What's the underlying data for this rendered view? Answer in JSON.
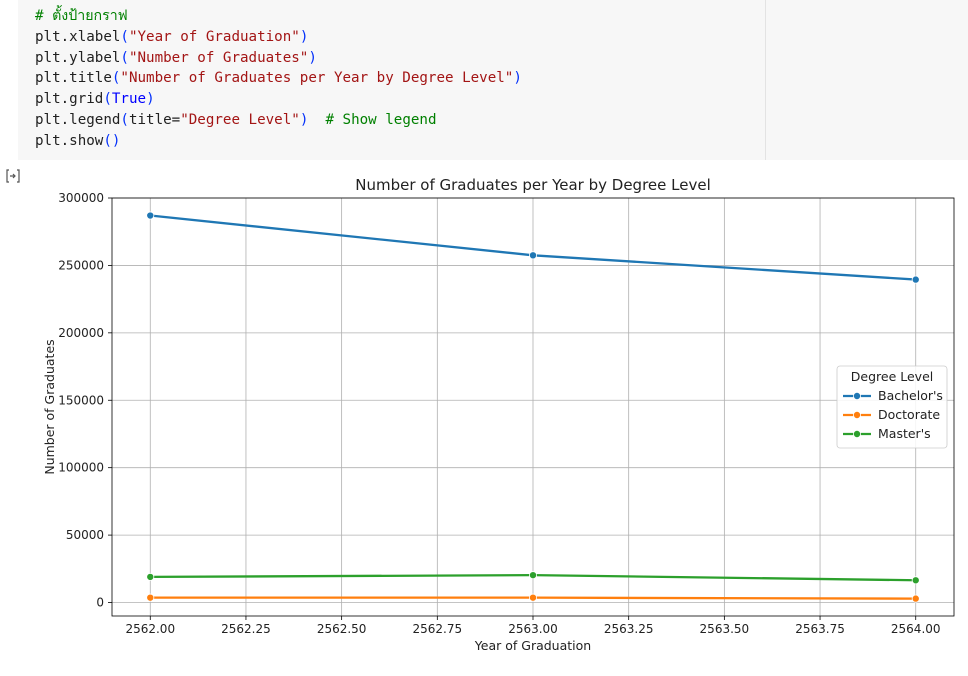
{
  "code": {
    "lines": [
      [
        {
          "t": "comment",
          "v": "# ตั้งป้ายกราฟ"
        }
      ],
      [
        {
          "t": "plain",
          "v": "plt.xlabel"
        },
        {
          "t": "paren",
          "v": "("
        },
        {
          "t": "string",
          "v": "\"Year of Graduation\""
        },
        {
          "t": "paren",
          "v": ")"
        }
      ],
      [
        {
          "t": "plain",
          "v": "plt.ylabel"
        },
        {
          "t": "paren",
          "v": "("
        },
        {
          "t": "string",
          "v": "\"Number of Graduates\""
        },
        {
          "t": "paren",
          "v": ")"
        }
      ],
      [
        {
          "t": "plain",
          "v": "plt.title"
        },
        {
          "t": "paren",
          "v": "("
        },
        {
          "t": "string",
          "v": "\"Number of Graduates per Year by Degree Level\""
        },
        {
          "t": "paren",
          "v": ")"
        }
      ],
      [
        {
          "t": "plain",
          "v": "plt.grid"
        },
        {
          "t": "paren",
          "v": "("
        },
        {
          "t": "kw",
          "v": "True"
        },
        {
          "t": "paren",
          "v": ")"
        }
      ],
      [
        {
          "t": "plain",
          "v": "plt.legend"
        },
        {
          "t": "paren",
          "v": "("
        },
        {
          "t": "plain",
          "v": "title="
        },
        {
          "t": "string",
          "v": "\"Degree Level\""
        },
        {
          "t": "paren",
          "v": ")"
        },
        {
          "t": "plain",
          "v": "  "
        },
        {
          "t": "comment",
          "v": "# Show legend"
        }
      ],
      [
        {
          "t": "plain",
          "v": "plt.show"
        },
        {
          "t": "paren",
          "v": "()"
        }
      ]
    ]
  },
  "output_icon": "output-toggle-icon",
  "chart_data": {
    "type": "line",
    "title": "Number of Graduates per Year by Degree Level",
    "xlabel": "Year of Graduation",
    "ylabel": "Number of Graduates",
    "xlim": [
      2561.9,
      2564.1
    ],
    "ylim": [
      -10000,
      300000
    ],
    "x_ticks": [
      2562.0,
      2562.25,
      2562.5,
      2562.75,
      2563.0,
      2563.25,
      2563.5,
      2563.75,
      2564.0
    ],
    "x_tick_labels": [
      "2562.00",
      "2562.25",
      "2562.50",
      "2562.75",
      "2563.00",
      "2563.25",
      "2563.50",
      "2563.75",
      "2564.00"
    ],
    "y_ticks": [
      0,
      50000,
      100000,
      150000,
      200000,
      250000,
      300000
    ],
    "y_tick_labels": [
      "0",
      "50000",
      "100000",
      "150000",
      "200000",
      "250000",
      "300000"
    ],
    "grid": true,
    "legend": {
      "title": "Degree Level",
      "placement": "center-right"
    },
    "x": [
      2562,
      2563,
      2564
    ],
    "series": [
      {
        "name": "Bachelor's",
        "color": "#1f77b4",
        "values": [
          287000,
          257500,
          239500
        ]
      },
      {
        "name": "Doctorate",
        "color": "#ff7f0e",
        "values": [
          3600,
          3600,
          2900
        ]
      },
      {
        "name": "Master's",
        "color": "#2ca02c",
        "values": [
          19000,
          20300,
          16500
        ]
      }
    ]
  }
}
